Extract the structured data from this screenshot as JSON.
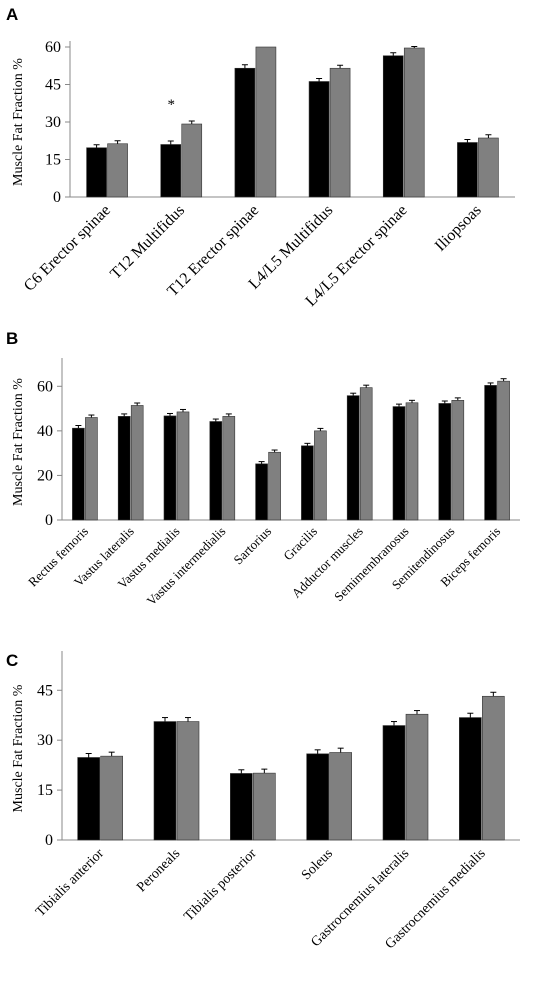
{
  "chart_data": [
    {
      "panel": "A",
      "type": "bar",
      "ylabel": "Muscle Fat Fraction %",
      "ylim": [
        0,
        60
      ],
      "yticks": [
        0,
        15,
        30,
        45,
        60
      ],
      "categories": [
        "C6 Erector spinae",
        "T12 Multifidus",
        "T12 Erector spinae",
        "L4/L5 Multifidus",
        "L4/L5 Erector spinae",
        "Iliopsoas"
      ],
      "series": [
        {
          "color": "#000000",
          "values": [
            19.7,
            21.0,
            51.5,
            46.2,
            56.5,
            21.8
          ],
          "errors": [
            1.2,
            1.4,
            1.4,
            1.2,
            1.2,
            1.2
          ]
        },
        {
          "color": "#808080",
          "values": [
            21.3,
            29.2,
            60.0,
            51.5,
            59.6,
            23.6
          ],
          "errors": [
            1.2,
            1.2,
            0.0,
            1.2,
            0.6,
            1.3
          ]
        }
      ],
      "annotations": [
        {
          "category": "T12 Multifidus",
          "text": "*"
        }
      ]
    },
    {
      "panel": "B",
      "type": "bar",
      "ylabel": "Muscle Fat Fraction %",
      "ylim": [
        0,
        70
      ],
      "yticks": [
        0,
        20,
        40,
        60
      ],
      "categories": [
        "Rectus femoris",
        "Vastus lateralis",
        "Vastus medialis",
        "Vastus intermedialis",
        "Sartorius",
        "Gracilis",
        "Adductor muscles",
        "Semimembranosus",
        "Semitendinosus",
        "Biceps femoris"
      ],
      "series": [
        {
          "color": "#000000",
          "values": [
            41.2,
            46.5,
            46.7,
            44.2,
            25.2,
            33.3,
            55.8,
            50.9,
            52.3,
            60.4
          ],
          "errors": [
            1.2,
            1.1,
            1.1,
            1.1,
            1.0,
            1.1,
            1.1,
            1.1,
            1.1,
            1.1
          ]
        },
        {
          "color": "#808080",
          "values": [
            46.0,
            51.4,
            48.5,
            46.5,
            30.4,
            40.0,
            59.4,
            52.6,
            53.7,
            62.3
          ],
          "errors": [
            1.1,
            1.1,
            1.1,
            1.1,
            1.0,
            1.1,
            1.1,
            1.1,
            1.1,
            1.1
          ]
        }
      ]
    },
    {
      "panel": "C",
      "type": "bar",
      "ylabel": "Muscle Fat Fraction %",
      "ylim": [
        0,
        55
      ],
      "yticks": [
        0,
        15,
        30,
        45
      ],
      "categories": [
        "Tibialis anterior",
        "Peroneals",
        "Tibialis posterior",
        "Soleus",
        "Gastrocnemius lateralis",
        "Gastrocnemius medialis"
      ],
      "series": [
        {
          "color": "#000000",
          "values": [
            24.8,
            35.6,
            20.0,
            25.9,
            34.4,
            36.8
          ],
          "errors": [
            1.2,
            1.2,
            1.1,
            1.2,
            1.2,
            1.3
          ]
        },
        {
          "color": "#808080",
          "values": [
            25.2,
            35.6,
            20.1,
            26.3,
            37.8,
            43.2
          ],
          "errors": [
            1.2,
            1.2,
            1.2,
            1.3,
            1.1,
            1.2
          ]
        }
      ]
    }
  ]
}
